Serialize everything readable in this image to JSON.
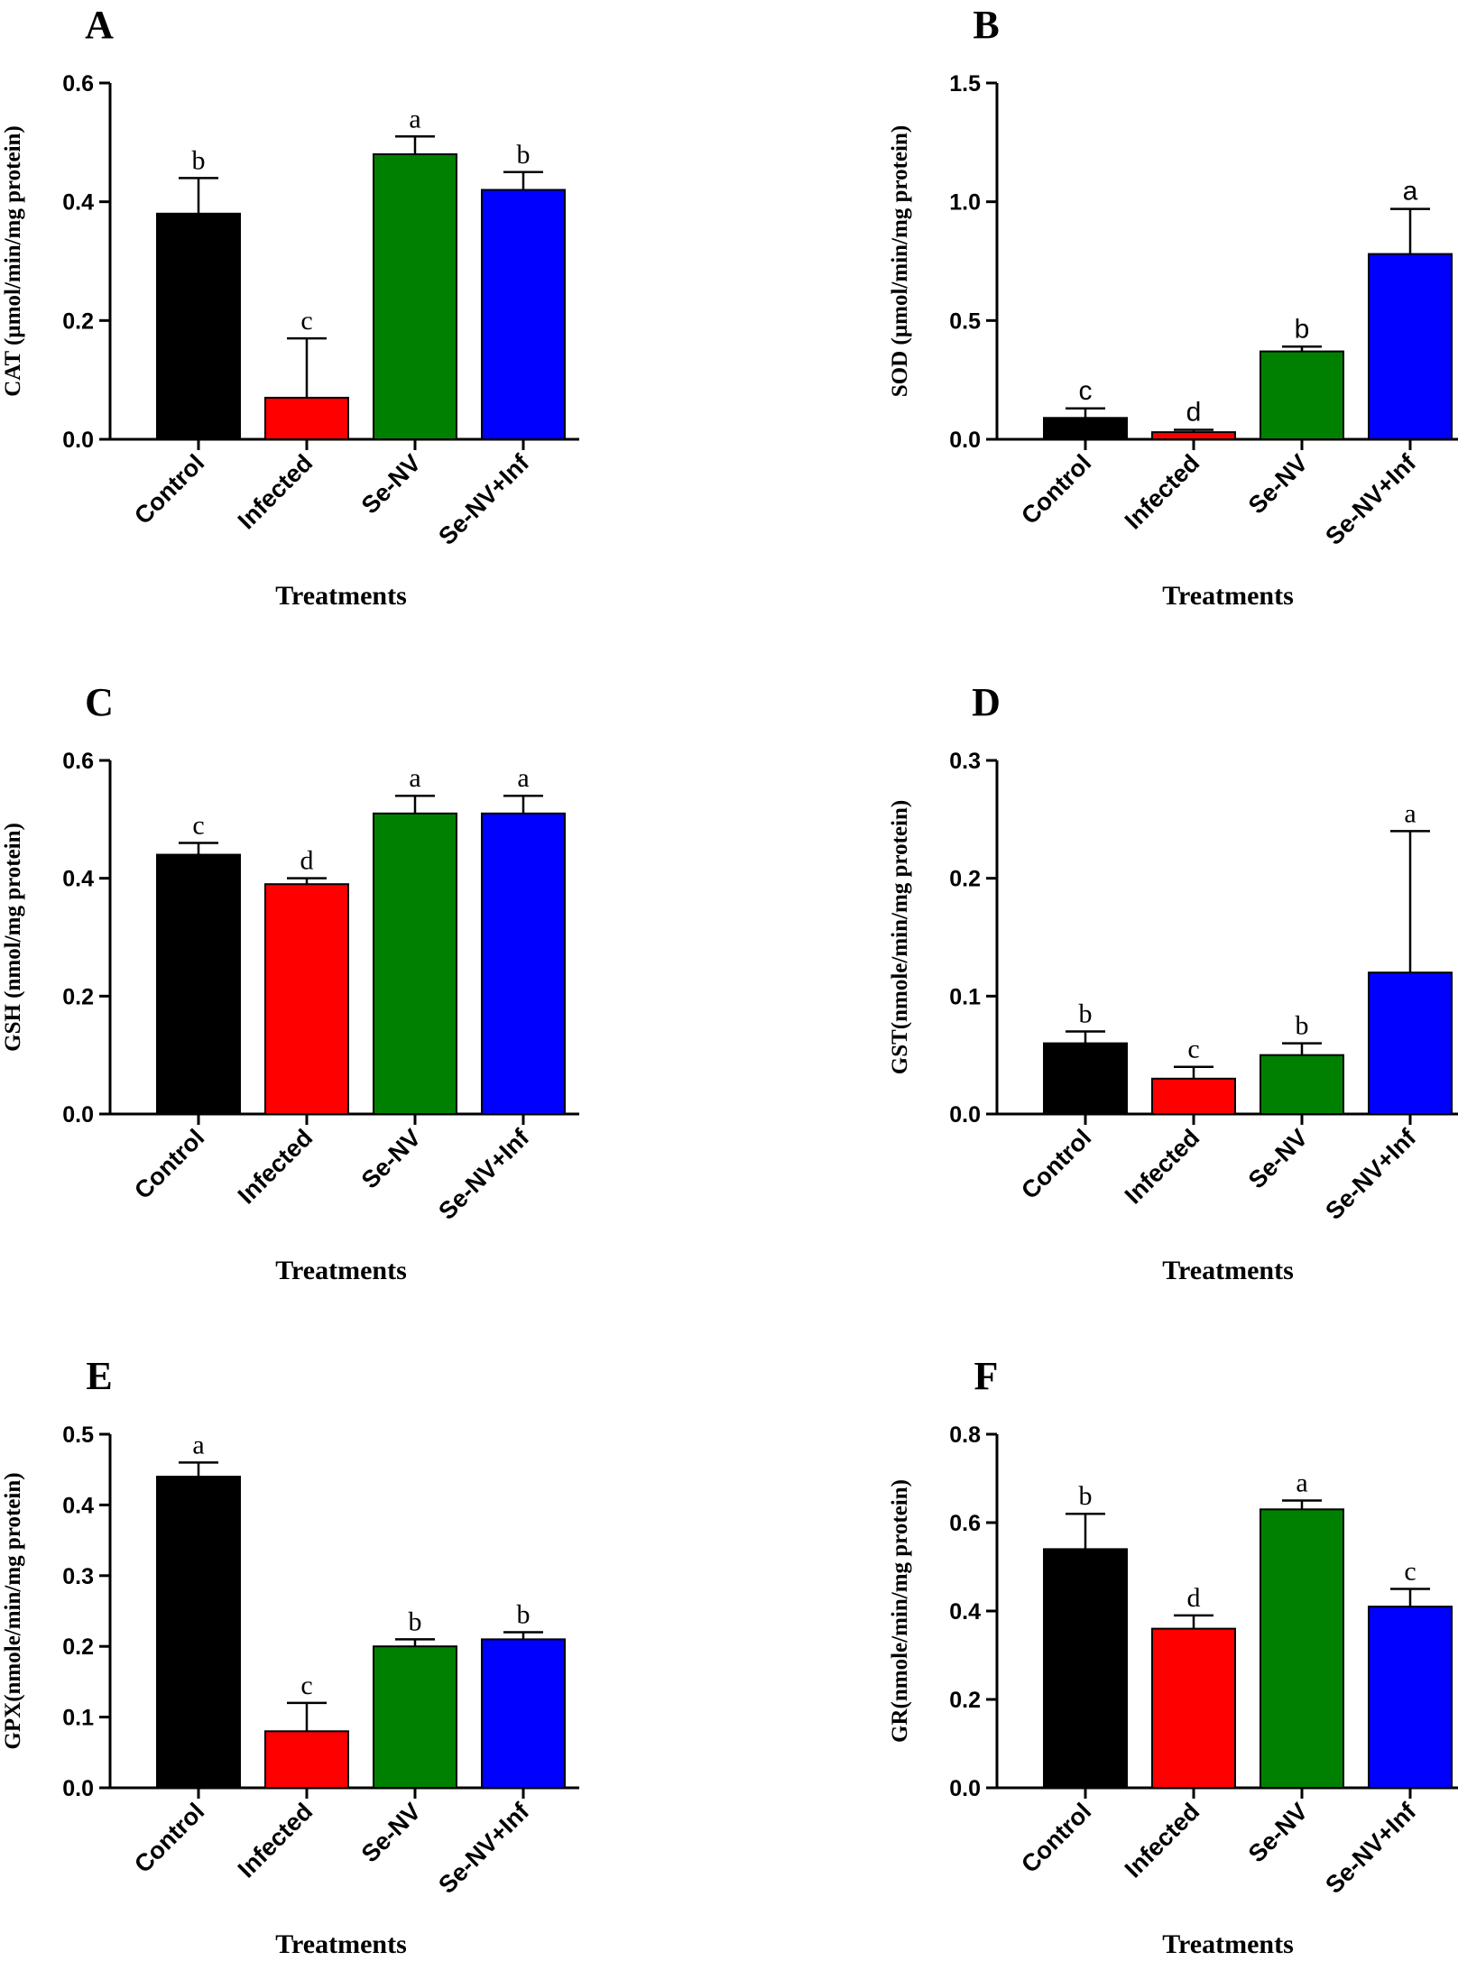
{
  "chart_data": [
    {
      "type": "bar",
      "panel": "A",
      "categories": [
        "Control",
        "Infected",
        "Se-NV",
        "Se-NV+Inf"
      ],
      "values": [
        0.38,
        0.07,
        0.48,
        0.42
      ],
      "errors": [
        0.06,
        0.1,
        0.03,
        0.03
      ],
      "letters": [
        "b",
        "c",
        "a",
        "b"
      ],
      "colors": [
        "#000000",
        "#ff0000",
        "#008000",
        "#0000ff"
      ],
      "ylabel": "CAT (µmol/min/mg protein)",
      "xlabel": "Treatments",
      "ylim": [
        0,
        0.6
      ],
      "yticks": [
        0.0,
        0.2,
        0.4,
        0.6
      ],
      "ytick_labels": [
        "0.0",
        "0.2",
        "0.4",
        "0.6"
      ],
      "letter_font": "serif"
    },
    {
      "type": "bar",
      "panel": "B",
      "categories": [
        "Control",
        "Infected",
        "Se-NV",
        "Se-NV+Inf"
      ],
      "values": [
        0.09,
        0.03,
        0.37,
        0.78
      ],
      "errors": [
        0.04,
        0.01,
        0.02,
        0.19
      ],
      "letters": [
        "c",
        "d",
        "b",
        "a"
      ],
      "colors": [
        "#000000",
        "#ff0000",
        "#008000",
        "#0000ff"
      ],
      "ylabel": "SOD (µmol/min/mg protein)",
      "xlabel": "Treatments",
      "ylim": [
        0,
        1.5
      ],
      "yticks": [
        0.0,
        0.5,
        1.0,
        1.5
      ],
      "ytick_labels": [
        "0.0",
        "0.5",
        "1.0",
        "1.5"
      ],
      "letter_font": "sans"
    },
    {
      "type": "bar",
      "panel": "C",
      "categories": [
        "Control",
        "Infected",
        "Se-NV",
        "Se-NV+Inf"
      ],
      "values": [
        0.44,
        0.39,
        0.51,
        0.51
      ],
      "errors": [
        0.02,
        0.01,
        0.03,
        0.03
      ],
      "letters": [
        "c",
        "d",
        "a",
        "a"
      ],
      "colors": [
        "#000000",
        "#ff0000",
        "#008000",
        "#0000ff"
      ],
      "ylabel": "GSH (nmol/mg protein)",
      "xlabel": "Treatments",
      "ylim": [
        0,
        0.6
      ],
      "yticks": [
        0.0,
        0.2,
        0.4,
        0.6
      ],
      "ytick_labels": [
        "0.0",
        "0.2",
        "0.4",
        "0.6"
      ],
      "letter_font": "serif"
    },
    {
      "type": "bar",
      "panel": "D",
      "categories": [
        "Control",
        "Infected",
        "Se-NV",
        "Se-NV+Inf"
      ],
      "values": [
        0.06,
        0.03,
        0.05,
        0.12
      ],
      "errors": [
        0.01,
        0.01,
        0.01,
        0.12
      ],
      "letters": [
        "b",
        "c",
        "b",
        "a"
      ],
      "colors": [
        "#000000",
        "#ff0000",
        "#008000",
        "#0000ff"
      ],
      "ylabel": "GST(nmole/min/mg protein)",
      "xlabel": "Treatments",
      "ylim": [
        0,
        0.3
      ],
      "yticks": [
        0.0,
        0.1,
        0.2,
        0.3
      ],
      "ytick_labels": [
        "0.0",
        "0.1",
        "0.2",
        "0.3"
      ],
      "letter_font": "serif"
    },
    {
      "type": "bar",
      "panel": "E",
      "categories": [
        "Control",
        "Infected",
        "Se-NV",
        "Se-NV+Inf"
      ],
      "values": [
        0.44,
        0.08,
        0.2,
        0.21
      ],
      "errors": [
        0.02,
        0.04,
        0.01,
        0.01
      ],
      "letters": [
        "a",
        "c",
        "b",
        "b"
      ],
      "colors": [
        "#000000",
        "#ff0000",
        "#008000",
        "#0000ff"
      ],
      "ylabel": "GPX(nmole/min/mg protein)",
      "xlabel": "Treatments",
      "ylim": [
        0,
        0.5
      ],
      "yticks": [
        0.0,
        0.1,
        0.2,
        0.3,
        0.4,
        0.5
      ],
      "ytick_labels": [
        "0.0",
        "0.1",
        "0.2",
        "0.3",
        "0.4",
        "0.5"
      ],
      "letter_font": "serif"
    },
    {
      "type": "bar",
      "panel": "F",
      "categories": [
        "Control",
        "Infected",
        "Se-NV",
        "Se-NV+Inf"
      ],
      "values": [
        0.54,
        0.36,
        0.63,
        0.41
      ],
      "errors": [
        0.08,
        0.03,
        0.02,
        0.04
      ],
      "letters": [
        "b",
        "d",
        "a",
        "c"
      ],
      "colors": [
        "#000000",
        "#ff0000",
        "#008000",
        "#0000ff"
      ],
      "ylabel": "GR(nmole/min/mg protein)",
      "xlabel": "Treatments",
      "ylim": [
        0,
        0.8
      ],
      "yticks": [
        0.0,
        0.2,
        0.4,
        0.6,
        0.8
      ],
      "ytick_labels": [
        "0.0",
        "0.2",
        "0.4",
        "0.6",
        "0.8"
      ],
      "letter_font": "serif"
    }
  ]
}
